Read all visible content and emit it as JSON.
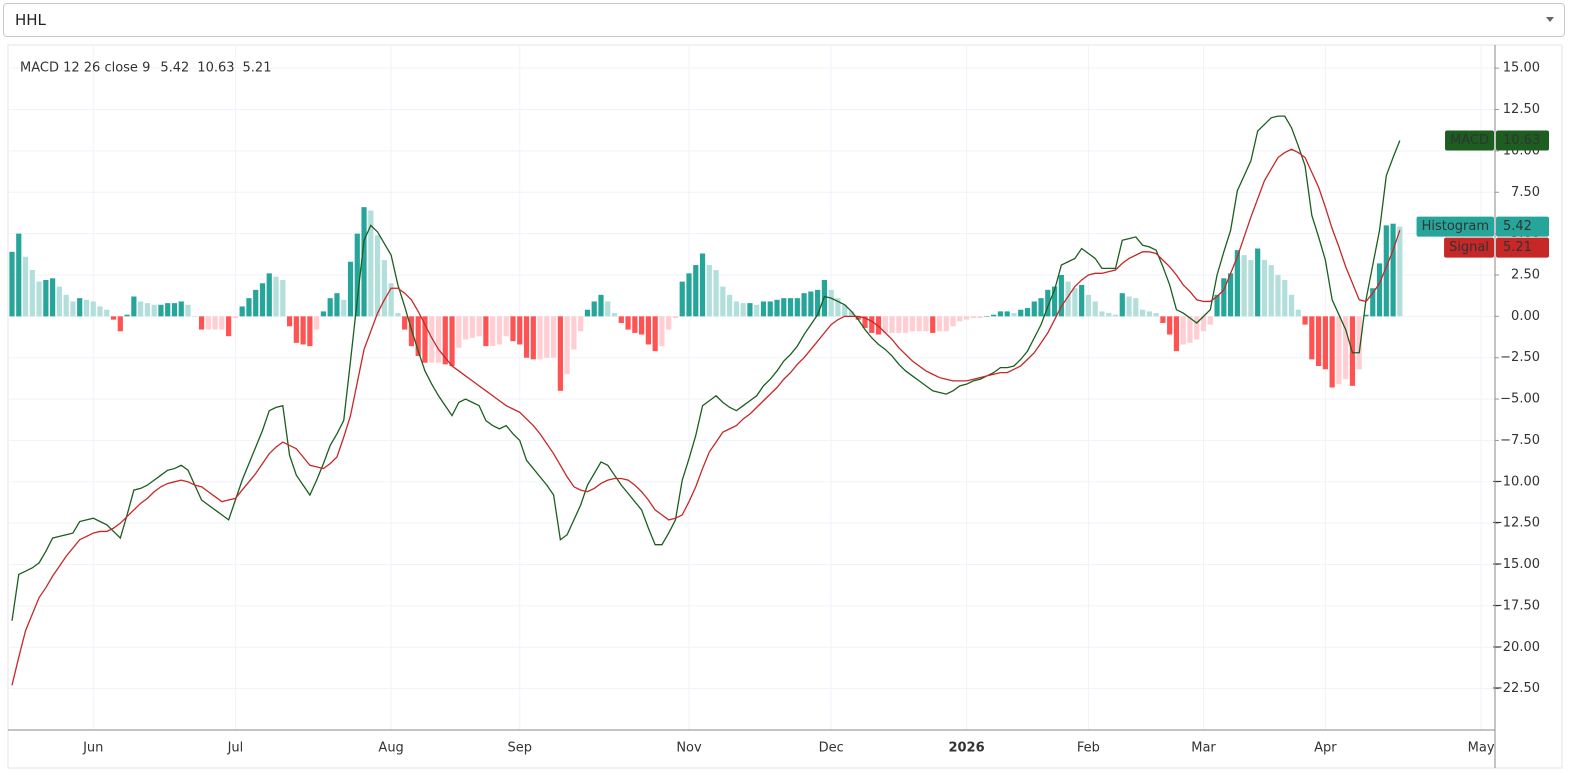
{
  "symbol": "HHL",
  "chart_data": {
    "type": "macd",
    "indicator_label": "MACD 12 26 close 9",
    "categories": [
      null,
      null,
      null,
      null,
      null,
      null,
      null,
      null,
      null,
      null,
      null,
      null,
      "Jun",
      null,
      null,
      null,
      null,
      null,
      null,
      null,
      null,
      null,
      null,
      null,
      null,
      null,
      null,
      null,
      null,
      null,
      null,
      null,
      null,
      "Jul",
      null,
      null,
      null,
      null,
      null,
      null,
      null,
      null,
      null,
      null,
      null,
      null,
      null,
      null,
      null,
      null,
      null,
      null,
      null,
      null,
      null,
      null,
      "Aug",
      null,
      null,
      null,
      null,
      null,
      null,
      null,
      null,
      null,
      null,
      null,
      null,
      null,
      null,
      null,
      null,
      null,
      null,
      "Sep",
      null,
      null,
      null,
      null,
      null,
      null,
      null,
      null,
      null,
      null,
      null,
      null,
      null,
      null,
      null,
      null,
      null,
      null,
      null,
      null,
      null,
      null,
      null,
      null,
      "Nov",
      null,
      null,
      null,
      null,
      null,
      null,
      null,
      null,
      null,
      null,
      null,
      null,
      null,
      null,
      null,
      null,
      null,
      null,
      null,
      null,
      "Dec",
      null,
      null,
      null,
      null,
      null,
      null,
      null,
      null,
      null,
      null,
      null,
      null,
      null,
      null,
      null,
      null,
      null,
      null,
      null,
      "2026",
      null,
      null,
      null,
      null,
      null,
      null,
      null,
      null,
      null,
      null,
      null,
      null,
      null,
      null,
      null,
      null,
      null,
      "Feb",
      null,
      null,
      null,
      null,
      null,
      null,
      null,
      null,
      null,
      null,
      null,
      null,
      null,
      null,
      null,
      null,
      "Mar",
      null,
      null,
      null,
      null,
      null,
      null,
      null,
      null,
      null,
      null,
      null,
      null,
      null,
      null,
      null,
      null,
      null,
      "Apr",
      null,
      null,
      null,
      null,
      null,
      null,
      null,
      null,
      null,
      null,
      null,
      null,
      null,
      null,
      null,
      null,
      null,
      null,
      null,
      null,
      null,
      null,
      "May",
      null,
      null
    ],
    "series": [
      {
        "name": "Histogram",
        "kind": "histogram",
        "color": "#26a69a",
        "colors": {
          "grow_above": "#26a69a",
          "fall_above": "#b2dfdb",
          "grow_below": "#ffcdd2",
          "fall_below": "#ff5252"
        },
        "values": [
          3.9,
          5.0,
          3.6,
          2.8,
          2.1,
          2.2,
          2.3,
          1.8,
          1.3,
          0.9,
          1.1,
          1.0,
          0.9,
          0.6,
          0.4,
          -0.2,
          -0.9,
          0.1,
          1.2,
          0.9,
          0.8,
          0.7,
          0.7,
          0.8,
          0.8,
          0.9,
          0.7,
          0.0,
          -0.8,
          -0.8,
          -0.8,
          -0.8,
          -1.2,
          -0.1,
          0.6,
          1.1,
          1.6,
          2.0,
          2.6,
          2.4,
          2.2,
          -0.6,
          -1.6,
          -1.7,
          -1.8,
          -0.8,
          0.3,
          1.1,
          1.4,
          1.0,
          3.3,
          5.0,
          6.6,
          6.4,
          4.9,
          3.4,
          2.0,
          0.2,
          -0.8,
          -1.8,
          -2.4,
          -2.8,
          -2.8,
          -2.8,
          -2.9,
          -3.0,
          -1.9,
          -1.4,
          -1.3,
          -1.2,
          -1.8,
          -1.8,
          -1.7,
          -1.2,
          -1.5,
          -1.7,
          -2.5,
          -2.6,
          -2.6,
          -2.5,
          -2.5,
          -4.5,
          -3.5,
          -2.0,
          -0.9,
          0.4,
          0.9,
          1.3,
          0.9,
          0.2,
          -0.4,
          -0.8,
          -1.0,
          -1.1,
          -1.7,
          -2.1,
          -1.8,
          -0.8,
          -0.1,
          2.1,
          2.6,
          3.1,
          3.8,
          3.1,
          2.8,
          1.8,
          1.3,
          0.9,
          0.8,
          0.8,
          0.7,
          0.9,
          0.9,
          1.0,
          1.1,
          1.1,
          1.1,
          1.4,
          1.5,
          1.6,
          2.2,
          1.6,
          1.1,
          0.7,
          0.3,
          -0.2,
          -0.7,
          -1.0,
          -1.1,
          -1.0,
          -1.0,
          -1.0,
          -1.0,
          -0.9,
          -0.9,
          -0.9,
          -1.0,
          -0.9,
          -0.9,
          -0.6,
          -0.3,
          -0.2,
          -0.1,
          -0.1,
          0.0,
          0.1,
          0.3,
          0.3,
          0.2,
          0.4,
          0.5,
          0.9,
          1.1,
          1.6,
          1.8,
          2.5,
          2.1,
          1.7,
          1.9,
          1.3,
          0.9,
          0.3,
          0.2,
          0.1,
          1.4,
          1.2,
          1.1,
          0.4,
          0.3,
          0.2,
          -0.4,
          -1.1,
          -2.1,
          -1.7,
          -1.6,
          -1.4,
          -0.9,
          -0.5,
          1.3,
          2.3,
          2.6,
          4.0,
          3.7,
          3.4,
          4.1,
          3.4,
          3.1,
          2.5,
          2.2,
          1.3,
          0.4,
          -0.5,
          -2.6,
          -3.0,
          -3.2,
          -4.3,
          -4.1,
          -3.8,
          -4.2,
          -3.2,
          0.1,
          1.7,
          3.2,
          5.5,
          5.6,
          5.42,
          null,
          null,
          null,
          null,
          null,
          null,
          null,
          null,
          null,
          null,
          null,
          null,
          null,
          null
        ]
      },
      {
        "name": "MACD",
        "kind": "line",
        "color": "#1b5e20",
        "values": [
          -18.4,
          -15.6,
          -15.4,
          -15.2,
          -14.9,
          -14.2,
          -13.4,
          -13.3,
          -13.2,
          -13.1,
          -12.4,
          -12.3,
          -12.2,
          -12.4,
          -12.6,
          -13.0,
          -13.4,
          -12.0,
          -10.5,
          -10.4,
          -10.2,
          -9.9,
          -9.6,
          -9.3,
          -9.2,
          -9.0,
          -9.3,
          -10.2,
          -11.1,
          -11.4,
          -11.7,
          -12.0,
          -12.3,
          -11.1,
          -9.9,
          -8.9,
          -7.9,
          -6.9,
          -5.7,
          -5.5,
          -5.4,
          -8.4,
          -9.6,
          -10.2,
          -10.8,
          -9.9,
          -8.9,
          -7.8,
          -7.1,
          -6.3,
          -2.7,
          1.0,
          4.6,
          5.5,
          5.1,
          4.4,
          3.7,
          1.9,
          0.6,
          -0.8,
          -2.1,
          -3.3,
          -4.1,
          -4.8,
          -5.4,
          -6.0,
          -5.2,
          -5.0,
          -5.2,
          -5.4,
          -6.3,
          -6.6,
          -6.8,
          -6.6,
          -7.1,
          -7.5,
          -8.7,
          -9.2,
          -9.7,
          -10.2,
          -10.8,
          -13.5,
          -13.2,
          -12.3,
          -11.4,
          -10.2,
          -9.5,
          -8.8,
          -9.0,
          -9.6,
          -10.2,
          -10.7,
          -11.2,
          -11.7,
          -12.8,
          -13.8,
          -13.8,
          -13.1,
          -12.3,
          -9.9,
          -8.6,
          -7.2,
          -5.4,
          -5.1,
          -4.8,
          -5.2,
          -5.5,
          -5.7,
          -5.4,
          -5.1,
          -4.8,
          -4.2,
          -3.8,
          -3.3,
          -2.7,
          -2.3,
          -1.8,
          -1.1,
          -0.5,
          0.1,
          1.2,
          1.1,
          0.9,
          0.7,
          0.3,
          -0.2,
          -0.8,
          -1.3,
          -1.7,
          -2.0,
          -2.4,
          -2.9,
          -3.3,
          -3.6,
          -3.9,
          -4.2,
          -4.5,
          -4.6,
          -4.7,
          -4.5,
          -4.2,
          -4.1,
          -3.9,
          -3.8,
          -3.6,
          -3.4,
          -3.1,
          -3.1,
          -3.0,
          -2.6,
          -2.1,
          -1.3,
          -0.5,
          0.6,
          1.6,
          3.1,
          3.3,
          3.5,
          4.1,
          3.8,
          3.5,
          2.9,
          2.9,
          2.9,
          4.6,
          4.7,
          4.8,
          4.3,
          4.2,
          4.0,
          3.0,
          1.9,
          0.4,
          0.2,
          -0.1,
          -0.4,
          0.0,
          0.4,
          2.5,
          3.9,
          5.2,
          7.6,
          8.5,
          9.4,
          11.2,
          11.6,
          12.0,
          12.1,
          12.1,
          11.4,
          10.3,
          9.1,
          6.1,
          4.8,
          3.4,
          1.0,
          0.1,
          -0.8,
          -2.2,
          -2.2,
          1.0,
          3.1,
          5.2,
          8.5,
          9.6,
          10.63,
          null,
          null,
          null,
          null,
          null,
          null,
          null,
          null,
          null,
          null,
          null,
          null,
          null,
          null
        ]
      },
      {
        "name": "Signal",
        "kind": "line",
        "color": "#c62828",
        "values": [
          -22.3,
          -20.6,
          -19.0,
          -18.0,
          -17.0,
          -16.4,
          -15.7,
          -15.1,
          -14.5,
          -14.0,
          -13.5,
          -13.3,
          -13.1,
          -13.0,
          -13.0,
          -12.8,
          -12.5,
          -12.1,
          -11.7,
          -11.3,
          -11.0,
          -10.6,
          -10.3,
          -10.1,
          -10.0,
          -9.9,
          -10.0,
          -10.2,
          -10.3,
          -10.6,
          -10.9,
          -11.2,
          -11.1,
          -11.0,
          -10.5,
          -10.0,
          -9.5,
          -8.9,
          -8.3,
          -7.9,
          -7.6,
          -7.8,
          -8.0,
          -8.5,
          -9.0,
          -9.1,
          -9.2,
          -8.9,
          -8.5,
          -7.3,
          -6.0,
          -4.0,
          -2.0,
          -0.9,
          0.2,
          1.0,
          1.7,
          1.7,
          1.4,
          1.0,
          0.3,
          -0.5,
          -1.3,
          -2.0,
          -2.5,
          -3.0,
          -3.3,
          -3.6,
          -3.9,
          -4.2,
          -4.5,
          -4.8,
          -5.1,
          -5.4,
          -5.6,
          -5.8,
          -6.2,
          -6.6,
          -7.1,
          -7.7,
          -8.3,
          -9.0,
          -9.7,
          -10.3,
          -10.5,
          -10.6,
          -10.4,
          -10.1,
          -9.9,
          -9.8,
          -9.8,
          -9.9,
          -10.2,
          -10.6,
          -11.1,
          -11.7,
          -12.0,
          -12.3,
          -12.2,
          -12.0,
          -11.2,
          -10.3,
          -9.2,
          -8.2,
          -7.6,
          -7.0,
          -6.8,
          -6.6,
          -6.2,
          -5.9,
          -5.5,
          -5.1,
          -4.7,
          -4.3,
          -3.8,
          -3.4,
          -2.9,
          -2.5,
          -2.0,
          -1.5,
          -1.0,
          -0.5,
          -0.2,
          0.0,
          0.0,
          0.0,
          -0.1,
          -0.3,
          -0.6,
          -1.0,
          -1.4,
          -1.9,
          -2.3,
          -2.7,
          -3.0,
          -3.3,
          -3.5,
          -3.7,
          -3.8,
          -3.9,
          -3.9,
          -3.9,
          -3.8,
          -3.7,
          -3.6,
          -3.5,
          -3.4,
          -3.4,
          -3.2,
          -3.0,
          -2.6,
          -2.2,
          -1.6,
          -1.0,
          -0.2,
          0.6,
          1.2,
          1.8,
          2.2,
          2.5,
          2.6,
          2.6,
          2.7,
          2.8,
          3.2,
          3.5,
          3.7,
          3.9,
          3.9,
          3.8,
          3.4,
          3.0,
          2.5,
          1.9,
          1.5,
          1.0,
          0.9,
          0.9,
          1.2,
          1.6,
          2.6,
          3.6,
          4.8,
          6.0,
          7.1,
          8.2,
          8.9,
          9.6,
          9.9,
          10.1,
          9.9,
          9.6,
          8.7,
          7.8,
          6.6,
          5.3,
          4.2,
          3.0,
          2.0,
          1.0,
          0.9,
          1.4,
          2.0,
          3.0,
          4.0,
          5.21,
          null,
          null,
          null,
          null,
          null,
          null,
          null,
          null,
          null,
          null,
          null,
          null,
          null,
          null
        ]
      }
    ],
    "ylim": [
      -25,
      16.4
    ],
    "yticks": [
      {
        "value": 15,
        "label": "15.00"
      },
      {
        "value": 12.5,
        "label": "12.50"
      },
      {
        "value": 10,
        "label": "10.00"
      },
      {
        "value": 7.5,
        "label": "7.50"
      },
      {
        "value": 5,
        "label": "5.00"
      },
      {
        "value": 2.5,
        "label": "2.50"
      },
      {
        "value": 0,
        "label": "0.00"
      },
      {
        "value": -2.5,
        "label": "−2.50"
      },
      {
        "value": -5,
        "label": "−5.00"
      },
      {
        "value": -7.5,
        "label": "−7.50"
      },
      {
        "value": -10,
        "label": "−10.00"
      },
      {
        "value": -12.5,
        "label": "−12.50"
      },
      {
        "value": -15,
        "label": "−15.00"
      },
      {
        "value": -17.5,
        "label": "−17.50"
      },
      {
        "value": -20,
        "label": "−20.00"
      },
      {
        "value": -22.5,
        "label": "−22.50"
      }
    ],
    "grid": true
  }
}
